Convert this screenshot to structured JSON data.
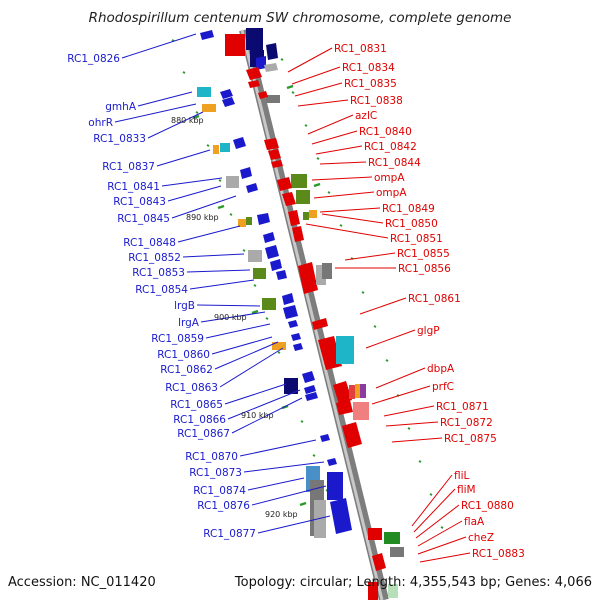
{
  "title": "Rhodospirillum centenum SW chromosome, complete genome",
  "accession": "Accession: NC_011420",
  "topology": "Topology: circular; Length: 4,355,543 bp; Genes: 4,066",
  "scale": {
    "label_880": "880 kbp",
    "label_890": "890 kbp",
    "label_900": "900 kbp",
    "label_910": "910 kbp",
    "label_920": "920 kbp"
  },
  "left_genes": [
    "RC1_0826",
    "gmhA",
    "ohrR",
    "RC1_0833",
    "RC1_0837",
    "RC1_0841",
    "RC1_0843",
    "RC1_0845",
    "RC1_0848",
    "RC1_0852",
    "RC1_0853",
    "RC1_0854",
    "lrgB",
    "lrgA",
    "RC1_0859",
    "RC1_0860",
    "RC1_0862",
    "RC1_0863",
    "RC1_0865",
    "RC1_0866",
    "RC1_0867",
    "RC1_0870",
    "RC1_0873",
    "RC1_0874",
    "RC1_0876",
    "RC1_0877"
  ],
  "right_genes": [
    "RC1_0831",
    "RC1_0834",
    "RC1_0835",
    "RC1_0838",
    "azlC",
    "RC1_0840",
    "RC1_0842",
    "RC1_0844",
    "ompA",
    "ompA",
    "RC1_0849",
    "RC1_0850",
    "RC1_0851",
    "RC1_0855",
    "RC1_0856",
    "RC1_0861",
    "glgP",
    "dbpA",
    "prfC",
    "RC1_0871",
    "RC1_0872",
    "RC1_0875",
    "fliL",
    "fliM",
    "RC1_0880",
    "flaA",
    "cheZ",
    "RC1_0883"
  ],
  "colors": {
    "backbone": "#9a9a9a",
    "forward_strand": "#1a1acc",
    "reverse_strand": "#e00000"
  }
}
